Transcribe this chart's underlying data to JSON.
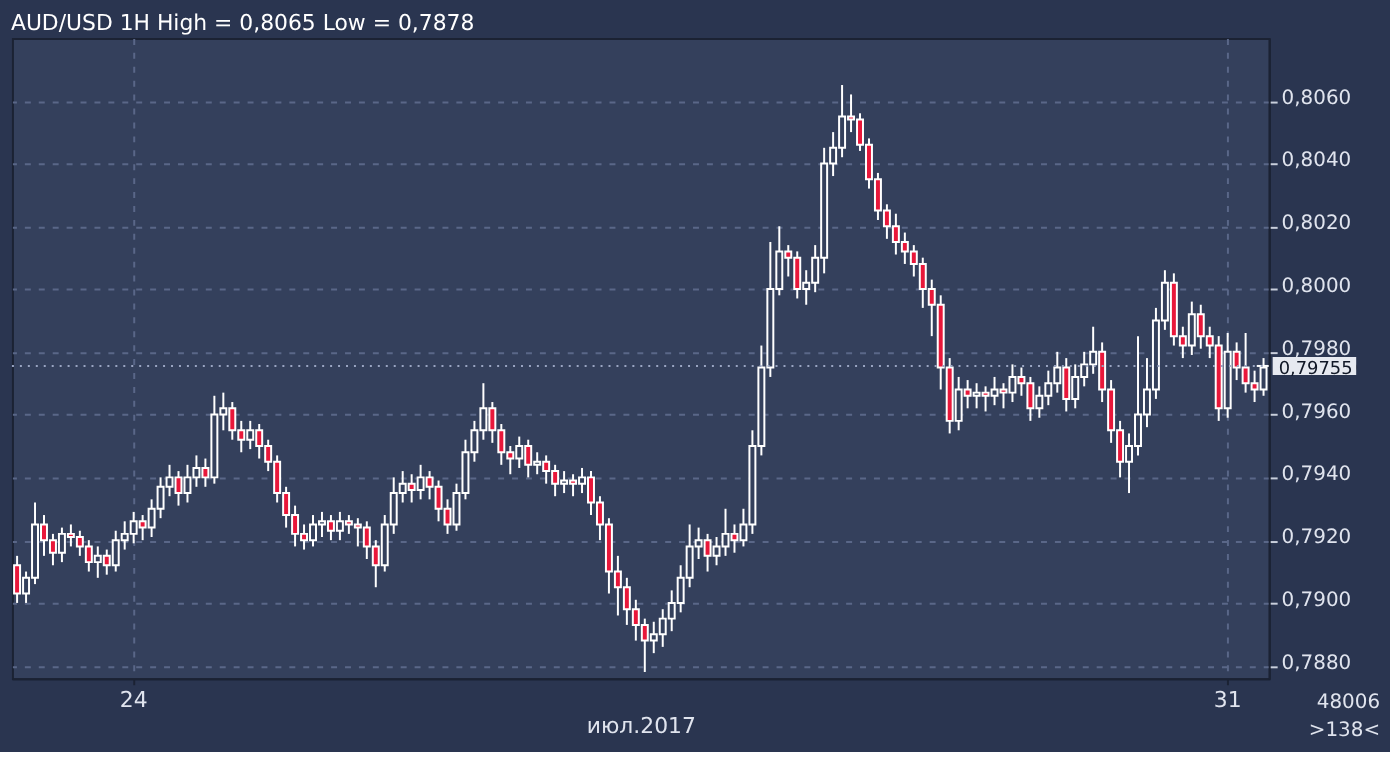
{
  "chart_data": {
    "type": "candlestick",
    "title": "AUD/USD 1H High = 0,8065 Low = 0,7878",
    "xlabel": "июл.2017",
    "categories": [
      null,
      null,
      null,
      null,
      null,
      null,
      null,
      null,
      null,
      null,
      null,
      null,
      null,
      "24",
      null,
      null,
      null,
      null,
      null,
      null,
      null,
      null,
      null,
      null,
      null,
      null,
      null,
      null,
      null,
      null,
      null,
      null,
      null,
      null,
      null,
      null,
      null,
      null,
      null,
      null,
      null,
      null,
      null,
      null,
      null,
      null,
      null,
      null,
      null,
      null,
      null,
      null,
      null,
      null,
      null,
      null,
      null,
      null,
      null,
      null,
      null,
      null,
      null,
      null,
      null,
      null,
      null,
      null,
      null,
      null,
      null,
      null,
      null,
      null,
      null,
      null,
      null,
      null,
      null,
      null,
      null,
      null,
      null,
      null,
      null,
      null,
      null,
      null,
      null,
      null,
      null,
      null,
      null,
      null,
      null,
      null,
      null,
      null,
      null,
      null,
      null,
      null,
      null,
      null,
      null,
      null,
      null,
      null,
      null,
      null,
      null,
      null,
      null,
      null,
      null,
      null,
      null,
      null,
      null,
      null,
      null,
      null,
      null,
      null,
      null,
      null,
      null,
      null,
      null,
      null,
      null,
      null,
      null,
      null,
      null,
      "31",
      null,
      null,
      null,
      null
    ],
    "ohlc": [
      [
        0.7912,
        0.7915,
        0.79,
        0.7903
      ],
      [
        0.7903,
        0.791,
        0.79,
        0.7908
      ],
      [
        0.7908,
        0.7932,
        0.7906,
        0.7925
      ],
      [
        0.7925,
        0.7928,
        0.7915,
        0.792
      ],
      [
        0.792,
        0.7922,
        0.7912,
        0.7916
      ],
      [
        0.7916,
        0.7924,
        0.7913,
        0.7922
      ],
      [
        0.7922,
        0.7925,
        0.7918,
        0.7921
      ],
      [
        0.7921,
        0.7923,
        0.7915,
        0.7918
      ],
      [
        0.7918,
        0.792,
        0.791,
        0.7913
      ],
      [
        0.7913,
        0.7918,
        0.7908,
        0.7915
      ],
      [
        0.7915,
        0.7917,
        0.7909,
        0.7912
      ],
      [
        0.7912,
        0.7923,
        0.791,
        0.792
      ],
      [
        0.792,
        0.7926,
        0.7917,
        0.7922
      ],
      [
        0.7922,
        0.7929,
        0.7919,
        0.7926
      ],
      [
        0.7926,
        0.7928,
        0.792,
        0.7924
      ],
      [
        0.7924,
        0.7933,
        0.7921,
        0.793
      ],
      [
        0.793,
        0.794,
        0.7927,
        0.7937
      ],
      [
        0.7937,
        0.7944,
        0.7934,
        0.794
      ],
      [
        0.794,
        0.7942,
        0.7931,
        0.7935
      ],
      [
        0.7935,
        0.7944,
        0.7932,
        0.794
      ],
      [
        0.794,
        0.7947,
        0.7937,
        0.7943
      ],
      [
        0.7943,
        0.7946,
        0.7937,
        0.794
      ],
      [
        0.794,
        0.7966,
        0.7938,
        0.796
      ],
      [
        0.796,
        0.7967,
        0.7955,
        0.7962
      ],
      [
        0.7962,
        0.7964,
        0.7952,
        0.7955
      ],
      [
        0.7955,
        0.7958,
        0.7948,
        0.7952
      ],
      [
        0.7952,
        0.7958,
        0.7949,
        0.7955
      ],
      [
        0.7955,
        0.7957,
        0.7946,
        0.795
      ],
      [
        0.795,
        0.7952,
        0.7942,
        0.7945
      ],
      [
        0.7945,
        0.7947,
        0.7932,
        0.7935
      ],
      [
        0.7935,
        0.7937,
        0.7924,
        0.7928
      ],
      [
        0.7928,
        0.7931,
        0.7918,
        0.7922
      ],
      [
        0.7922,
        0.7925,
        0.7917,
        0.792
      ],
      [
        0.792,
        0.7928,
        0.7918,
        0.7925
      ],
      [
        0.7925,
        0.7929,
        0.7921,
        0.7926
      ],
      [
        0.7926,
        0.7928,
        0.792,
        0.7923
      ],
      [
        0.7923,
        0.7929,
        0.792,
        0.7926
      ],
      [
        0.7926,
        0.7928,
        0.7922,
        0.7925
      ],
      [
        0.7925,
        0.7927,
        0.7918,
        0.7924
      ],
      [
        0.7924,
        0.7926,
        0.7914,
        0.7918
      ],
      [
        0.7918,
        0.792,
        0.7905,
        0.7912
      ],
      [
        0.7912,
        0.7928,
        0.791,
        0.7925
      ],
      [
        0.7925,
        0.794,
        0.7922,
        0.7935
      ],
      [
        0.7935,
        0.7942,
        0.7932,
        0.7938
      ],
      [
        0.7938,
        0.7941,
        0.7932,
        0.7936
      ],
      [
        0.7936,
        0.7944,
        0.7933,
        0.794
      ],
      [
        0.794,
        0.7942,
        0.7933,
        0.7937
      ],
      [
        0.7937,
        0.7939,
        0.7926,
        0.793
      ],
      [
        0.793,
        0.7933,
        0.7922,
        0.7925
      ],
      [
        0.7925,
        0.7938,
        0.7923,
        0.7935
      ],
      [
        0.7935,
        0.7952,
        0.7933,
        0.7948
      ],
      [
        0.7948,
        0.7958,
        0.7945,
        0.7955
      ],
      [
        0.7955,
        0.797,
        0.7952,
        0.7962
      ],
      [
        0.7962,
        0.7964,
        0.7951,
        0.7955
      ],
      [
        0.7955,
        0.7957,
        0.7944,
        0.7948
      ],
      [
        0.7948,
        0.795,
        0.7941,
        0.7946
      ],
      [
        0.7946,
        0.7953,
        0.7943,
        0.795
      ],
      [
        0.795,
        0.7952,
        0.794,
        0.7944
      ],
      [
        0.7944,
        0.7948,
        0.7941,
        0.7945
      ],
      [
        0.7945,
        0.7947,
        0.7938,
        0.7942
      ],
      [
        0.7942,
        0.7944,
        0.7934,
        0.7938
      ],
      [
        0.7938,
        0.7942,
        0.7935,
        0.7939
      ],
      [
        0.7939,
        0.7941,
        0.7934,
        0.7938
      ],
      [
        0.7938,
        0.7943,
        0.7935,
        0.794
      ],
      [
        0.794,
        0.7942,
        0.7928,
        0.7932
      ],
      [
        0.7932,
        0.7934,
        0.792,
        0.7925
      ],
      [
        0.7925,
        0.7927,
        0.7903,
        0.791
      ],
      [
        0.791,
        0.7915,
        0.7896,
        0.7905
      ],
      [
        0.7905,
        0.7908,
        0.7893,
        0.7898
      ],
      [
        0.7898,
        0.7901,
        0.7888,
        0.7893
      ],
      [
        0.7893,
        0.7895,
        0.7878,
        0.7888
      ],
      [
        0.7888,
        0.7894,
        0.7884,
        0.789
      ],
      [
        0.789,
        0.7898,
        0.7886,
        0.7895
      ],
      [
        0.7895,
        0.7904,
        0.7891,
        0.79
      ],
      [
        0.79,
        0.7912,
        0.7897,
        0.7908
      ],
      [
        0.7908,
        0.7925,
        0.7905,
        0.7918
      ],
      [
        0.7918,
        0.7924,
        0.7914,
        0.792
      ],
      [
        0.792,
        0.7922,
        0.791,
        0.7915
      ],
      [
        0.7915,
        0.7921,
        0.7912,
        0.7918
      ],
      [
        0.7918,
        0.793,
        0.7915,
        0.7922
      ],
      [
        0.7922,
        0.7925,
        0.7916,
        0.792
      ],
      [
        0.792,
        0.793,
        0.7918,
        0.7925
      ],
      [
        0.7925,
        0.7955,
        0.7922,
        0.795
      ],
      [
        0.795,
        0.7982,
        0.7947,
        0.7975
      ],
      [
        0.7975,
        0.8015,
        0.7972,
        0.8
      ],
      [
        0.8,
        0.802,
        0.7998,
        0.8012
      ],
      [
        0.8012,
        0.8014,
        0.8004,
        0.801
      ],
      [
        0.801,
        0.8012,
        0.7997,
        0.8
      ],
      [
        0.8,
        0.8006,
        0.7995,
        0.8002
      ],
      [
        0.8002,
        0.8014,
        0.7999,
        0.801
      ],
      [
        0.801,
        0.8045,
        0.8005,
        0.804
      ],
      [
        0.804,
        0.805,
        0.8036,
        0.8045
      ],
      [
        0.8045,
        0.8065,
        0.8042,
        0.8055
      ],
      [
        0.8055,
        0.8062,
        0.805,
        0.8054
      ],
      [
        0.8054,
        0.8056,
        0.8044,
        0.8046
      ],
      [
        0.8046,
        0.8048,
        0.8032,
        0.8035
      ],
      [
        0.8035,
        0.8037,
        0.8022,
        0.8025
      ],
      [
        0.8025,
        0.8027,
        0.8016,
        0.802
      ],
      [
        0.802,
        0.8024,
        0.8011,
        0.8015
      ],
      [
        0.8015,
        0.8018,
        0.8008,
        0.8012
      ],
      [
        0.8012,
        0.8014,
        0.8004,
        0.8008
      ],
      [
        0.8008,
        0.801,
        0.7994,
        0.8
      ],
      [
        0.8,
        0.8003,
        0.7985,
        0.7995
      ],
      [
        0.7995,
        0.7998,
        0.7968,
        0.7975
      ],
      [
        0.7975,
        0.7978,
        0.7954,
        0.7958
      ],
      [
        0.7958,
        0.7972,
        0.7955,
        0.7968
      ],
      [
        0.7968,
        0.7971,
        0.7962,
        0.7966
      ],
      [
        0.7966,
        0.797,
        0.7962,
        0.7967
      ],
      [
        0.7967,
        0.7969,
        0.7961,
        0.7966
      ],
      [
        0.7966,
        0.7972,
        0.7963,
        0.7968
      ],
      [
        0.7968,
        0.797,
        0.7962,
        0.7967
      ],
      [
        0.7967,
        0.7976,
        0.7964,
        0.7972
      ],
      [
        0.7972,
        0.7975,
        0.7966,
        0.797
      ],
      [
        0.797,
        0.7972,
        0.7958,
        0.7962
      ],
      [
        0.7962,
        0.7969,
        0.7959,
        0.7966
      ],
      [
        0.7966,
        0.7974,
        0.7963,
        0.797
      ],
      [
        0.797,
        0.798,
        0.7967,
        0.7975
      ],
      [
        0.7975,
        0.7978,
        0.7961,
        0.7965
      ],
      [
        0.7965,
        0.7976,
        0.7962,
        0.7972
      ],
      [
        0.7972,
        0.798,
        0.7969,
        0.7976
      ],
      [
        0.7976,
        0.7988,
        0.7973,
        0.798
      ],
      [
        0.798,
        0.7983,
        0.7964,
        0.7968
      ],
      [
        0.7968,
        0.7971,
        0.7951,
        0.7955
      ],
      [
        0.7955,
        0.7958,
        0.794,
        0.7945
      ],
      [
        0.7945,
        0.7954,
        0.7935,
        0.795
      ],
      [
        0.795,
        0.7985,
        0.7947,
        0.796
      ],
      [
        0.796,
        0.7978,
        0.7956,
        0.7968
      ],
      [
        0.7968,
        0.7994,
        0.7965,
        0.799
      ],
      [
        0.799,
        0.8006,
        0.7987,
        0.8002
      ],
      [
        0.8002,
        0.8005,
        0.7982,
        0.7985
      ],
      [
        0.7985,
        0.7988,
        0.7978,
        0.7982
      ],
      [
        0.7982,
        0.7996,
        0.7979,
        0.7992
      ],
      [
        0.7992,
        0.7995,
        0.7981,
        0.7985
      ],
      [
        0.7985,
        0.7988,
        0.7978,
        0.7982
      ],
      [
        0.7982,
        0.7985,
        0.7958,
        0.7962
      ],
      [
        0.7962,
        0.7986,
        0.7959,
        0.798
      ],
      [
        0.798,
        0.7983,
        0.7971,
        0.7975
      ],
      [
        0.7975,
        0.7986,
        0.7967,
        0.797
      ],
      [
        0.797,
        0.7974,
        0.7964,
        0.7968
      ],
      [
        0.7968,
        0.7978,
        0.7966,
        0.7975
      ]
    ],
    "ylim": [
      0.7876,
      0.808
    ],
    "yticks": [
      {
        "value": 0.788,
        "label": "0,7880"
      },
      {
        "value": 0.79,
        "label": "0,7900"
      },
      {
        "value": 0.792,
        "label": "0,7920"
      },
      {
        "value": 0.794,
        "label": "0,7940"
      },
      {
        "value": 0.796,
        "label": "0,7960"
      },
      {
        "value": 0.798,
        "label": "0,7980"
      },
      {
        "value": 0.8,
        "label": "0,8000"
      },
      {
        "value": 0.802,
        "label": "0,8020"
      },
      {
        "value": 0.804,
        "label": "0,8040"
      },
      {
        "value": 0.806,
        "label": "0,8060"
      }
    ],
    "ref_lines": [
      {
        "axis": "y",
        "value": 0.79755,
        "label": "0,79755"
      }
    ],
    "annotations": [
      "48006",
      ">138<"
    ],
    "grid": true
  }
}
